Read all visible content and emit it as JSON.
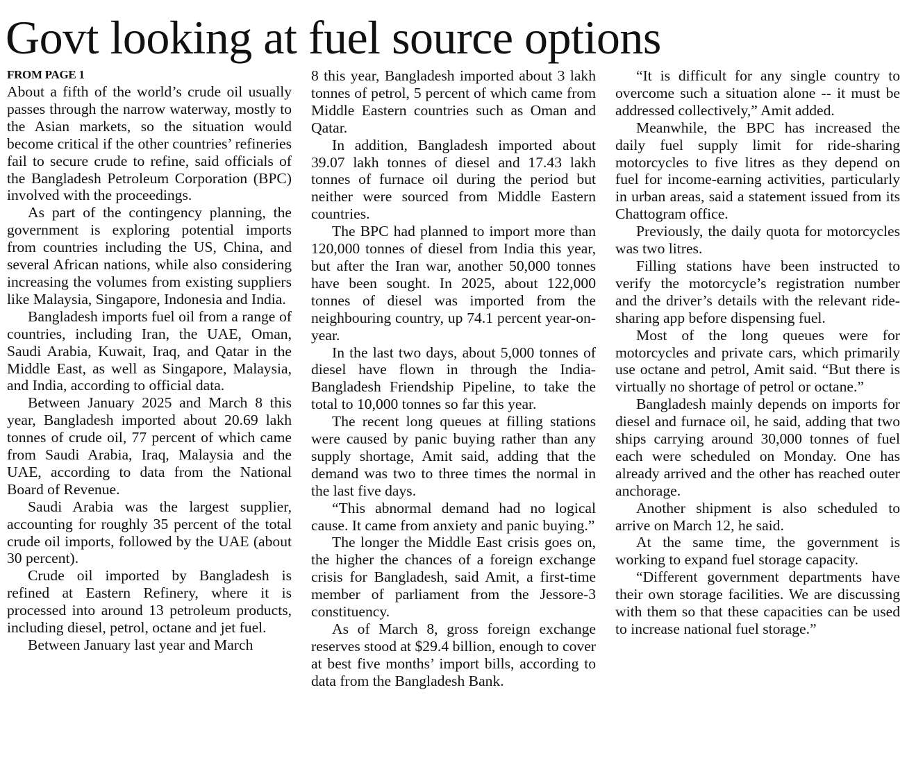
{
  "headline": "Govt looking at fuel source options",
  "kicker": "FROM PAGE 1",
  "columns": [
    [
      "About a fifth of the world’s crude oil usually passes through the narrow waterway, mostly to the Asian markets, so the situation would become critical if the other countries’ refineries fail to secure crude to refine, said officials of the Bangladesh Petroleum Corporation (BPC) involved with the proceedings.",
      "As part of the contingency planning, the government is exploring potential imports from countries including the US, China, and several African nations, while also considering increasing the volumes from existing suppliers like Malaysia, Singapore, Indonesia and India.",
      "Bangladesh imports fuel oil from a range of countries, including Iran, the UAE, Oman, Saudi Arabia, Kuwait, Iraq, and Qatar in the Middle East, as well as Singapore, Malaysia, and India, according to official data.",
      "Between January 2025 and March 8 this year, Bangladesh imported about 20.69 lakh tonnes of crude oil, 77 percent of which came from Saudi Arabia, Iraq, Malaysia and the UAE, according to data from the National Board of Revenue.",
      "Saudi Arabia was the largest supplier, accounting for roughly 35 percent of the total crude oil imports, followed by the UAE (about 30 percent).",
      "Crude oil imported by Bangladesh is refined at Eastern Refinery, where it is processed into around 13 petroleum products, including diesel, petrol, octane and jet fuel.",
      "Between January last year and March"
    ],
    [
      "8 this year, Bangladesh imported about 3 lakh tonnes of petrol, 5 percent of which came from Middle Eastern countries such as Oman and Qatar.",
      "In addition, Bangladesh imported about 39.07 lakh tonnes of diesel and 17.43 lakh tonnes of furnace oil during the period but neither were sourced from Middle Eastern countries.",
      "The BPC had planned to import more than 120,000 tonnes of diesel from India this year, but after the Iran war, another 50,000 tonnes have been sought. In 2025, about 122,000 tonnes of diesel was imported from the neighbouring country, up 74.1 percent year-on-year.",
      "In the last two days, about 5,000 tonnes of diesel have flown in through the India-Bangladesh Friendship Pipeline, to take the total to 10,000 tonnes so far this year.",
      "The recent long queues at filling stations were caused by panic buying rather than any supply shortage, Amit said, adding that the demand was two to three times the normal in the last five days.",
      "“This abnormal demand had no logical cause. It came from anxiety and panic buying.”",
      "The longer the Middle East crisis goes on, the higher the chances of a foreign exchange crisis for Bangladesh, said Amit, a first-time member of parliament from the Jessore-3 constituency.",
      "As of March 8, gross foreign exchange reserves stood at $29.4 billion, enough to cover at best five months’ import bills, according to data from the Bangladesh Bank."
    ],
    [
      "“It is difficult for any single country to overcome such a situation alone -- it must be addressed collectively,” Amit added.",
      "Meanwhile, the BPC has increased the daily fuel supply limit for ride-sharing motorcycles to five litres as they depend on fuel for income-earning activities, particularly in urban areas, said a statement issued from its Chattogram office.",
      "Previously, the daily quota for motorcycles was two litres.",
      "Filling stations have been instructed to verify the motorcycle’s registration number and the driver’s details with the relevant ride-sharing app before dispensing fuel.",
      "Most of the long queues were for motorcycles and private cars, which primarily use octane and petrol, Amit said. “But there is virtually no shortage of petrol or octane.”",
      "Bangladesh mainly depends on imports for diesel and furnace oil, he said, adding that two ships carrying around 30,000 tonnes of fuel each were scheduled on Monday. One has already arrived and the other has reached outer anchorage.",
      "Another shipment is also scheduled to arrive on March 12, he said.",
      "At the same time, the government is working to expand fuel storage capacity.",
      "“Different government departments have their own storage facilities. We are discussing with them so that these capacities can be used to increase national fuel storage.”"
    ]
  ]
}
